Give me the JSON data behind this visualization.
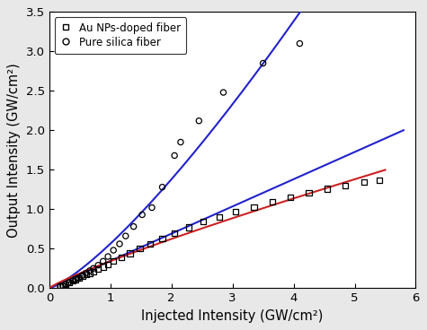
{
  "title": "",
  "xlabel": "Injected Intensity (GW/cm²)",
  "ylabel": "Output Intensity (GW/cm²)",
  "xlim": [
    0,
    6
  ],
  "ylim": [
    0,
    3.5
  ],
  "xticks": [
    0,
    1,
    2,
    3,
    4,
    5,
    6
  ],
  "yticks": [
    0.0,
    0.5,
    1.0,
    1.5,
    2.0,
    2.5,
    3.0,
    3.5
  ],
  "pure_silica_x": [
    0.18,
    0.22,
    0.27,
    0.32,
    0.38,
    0.43,
    0.48,
    0.54,
    0.6,
    0.66,
    0.72,
    0.8,
    0.88,
    0.96,
    1.05,
    1.15,
    1.25,
    1.38,
    1.52,
    1.68,
    1.85,
    2.05,
    2.15,
    2.45,
    2.85,
    3.5,
    4.1
  ],
  "pure_silica_y": [
    0.02,
    0.03,
    0.05,
    0.07,
    0.09,
    0.11,
    0.13,
    0.16,
    0.19,
    0.22,
    0.25,
    0.29,
    0.34,
    0.4,
    0.48,
    0.56,
    0.66,
    0.78,
    0.93,
    1.02,
    1.28,
    1.68,
    1.85,
    2.12,
    2.48,
    2.85,
    3.1
  ],
  "au_doped_x": [
    0.18,
    0.22,
    0.27,
    0.32,
    0.38,
    0.43,
    0.48,
    0.54,
    0.6,
    0.66,
    0.72,
    0.8,
    0.88,
    0.96,
    1.05,
    1.18,
    1.32,
    1.48,
    1.65,
    1.85,
    2.05,
    2.28,
    2.52,
    2.78,
    3.05,
    3.35,
    3.65,
    3.95,
    4.25,
    4.55,
    4.85,
    5.15,
    5.4
  ],
  "au_doped_y": [
    0.02,
    0.03,
    0.05,
    0.07,
    0.09,
    0.11,
    0.13,
    0.15,
    0.17,
    0.19,
    0.21,
    0.24,
    0.27,
    0.3,
    0.34,
    0.39,
    0.44,
    0.5,
    0.56,
    0.63,
    0.7,
    0.77,
    0.84,
    0.9,
    0.97,
    1.03,
    1.09,
    1.15,
    1.21,
    1.26,
    1.3,
    1.34,
    1.37
  ],
  "pure_silica_fit_color": "#2222cc",
  "au_doped_fit_color": "#cc2222",
  "linear_fit_color": "#2222cc",
  "pure_silica_marker_color": "black",
  "au_doped_marker_color": "black",
  "legend_entry1_label": "Au NPs-doped fiber",
  "legend_entry2_label": "Pure silica fiber",
  "background_color": "#e8e8e8",
  "axis_bg_color": "#ffffff",
  "ps_fit_a": 0.185,
  "ps_fit_b": 2.05,
  "au_fit_a": 0.38,
  "au_fit_b": 0.58,
  "linear_slope": 0.345
}
